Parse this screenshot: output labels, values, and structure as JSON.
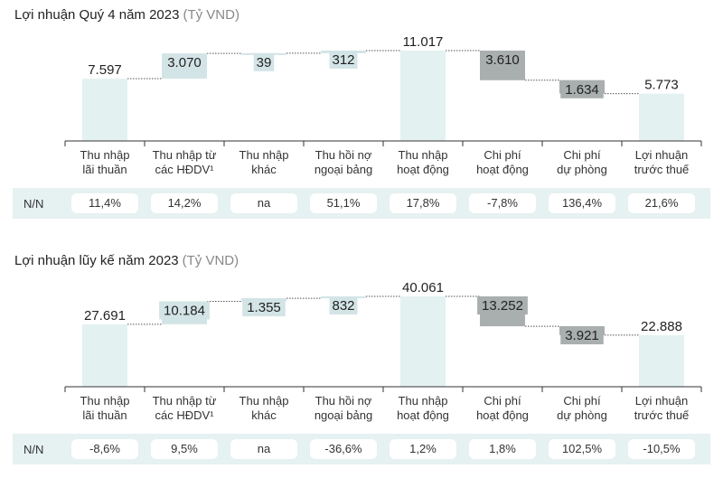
{
  "panels": [
    {
      "title": "Lợi nhuận Quý 4 năm 2023",
      "unit": "(Tỷ VND)",
      "yoy_label": "N/N",
      "yoy": [
        "11,4%",
        "14,2%",
        "na",
        "51,1%",
        "17,8%",
        "-7,8%",
        "136,4%",
        "21,6%"
      ],
      "chart_data": {
        "type": "bar",
        "subtype": "waterfall",
        "categories": [
          [
            "Thu nhập",
            "lãi thuần"
          ],
          [
            "Thu nhập từ",
            "các HĐDV¹"
          ],
          [
            "Thu nhập",
            "khác"
          ],
          [
            "Thu hồi nợ",
            "ngoại bảng"
          ],
          [
            "Thu nhập",
            "hoạt động"
          ],
          [
            "Chi phí",
            "hoạt động"
          ],
          [
            "Chi phí",
            "dự phòng"
          ],
          [
            "Lợi nhuận",
            "trước thuế"
          ]
        ],
        "values": [
          7597,
          3070,
          39,
          312,
          11017,
          -3610,
          -1634,
          5773
        ],
        "labels": [
          "7.597",
          "3.070",
          "39",
          "312",
          "11.017",
          "3.610",
          "1.634",
          "5.773"
        ],
        "kinds": [
          "total",
          "increase",
          "increase",
          "increase",
          "total",
          "decrease",
          "decrease",
          "total"
        ],
        "colors": {
          "total": "#e4f1f1",
          "increase": "#d3e4e6",
          "decrease": "#a9aeae"
        }
      }
    },
    {
      "title": "Lợi nhuận lũy kế năm 2023",
      "unit": "(Tỷ VND)",
      "yoy_label": "N/N",
      "yoy": [
        "-8,6%",
        "9,5%",
        "na",
        "-36,6%",
        "1,2%",
        "1,8%",
        "102,5%",
        "-10,5%"
      ],
      "chart_data": {
        "type": "bar",
        "subtype": "waterfall",
        "categories": [
          [
            "Thu nhập",
            "lãi thuần"
          ],
          [
            "Thu nhập từ",
            "các HĐDV¹"
          ],
          [
            "Thu nhập",
            "khác"
          ],
          [
            "Thu hồi nợ",
            "ngoại bảng"
          ],
          [
            "Thu nhập",
            "hoạt động"
          ],
          [
            "Chi phí",
            "hoạt động"
          ],
          [
            "Chi phí",
            "dự phòng"
          ],
          [
            "Lợi nhuận",
            "trước thuế"
          ]
        ],
        "values": [
          27691,
          10184,
          1355,
          832,
          40061,
          -13252,
          -3921,
          22888
        ],
        "labels": [
          "27.691",
          "10.184",
          "1.355",
          "832",
          "40.061",
          "13.252",
          "3.921",
          "22.888"
        ],
        "kinds": [
          "total",
          "increase",
          "increase",
          "increase",
          "total",
          "decrease",
          "decrease",
          "total"
        ],
        "colors": {
          "total": "#e4f1f1",
          "increase": "#d3e4e6",
          "decrease": "#a9aeae"
        }
      }
    }
  ]
}
